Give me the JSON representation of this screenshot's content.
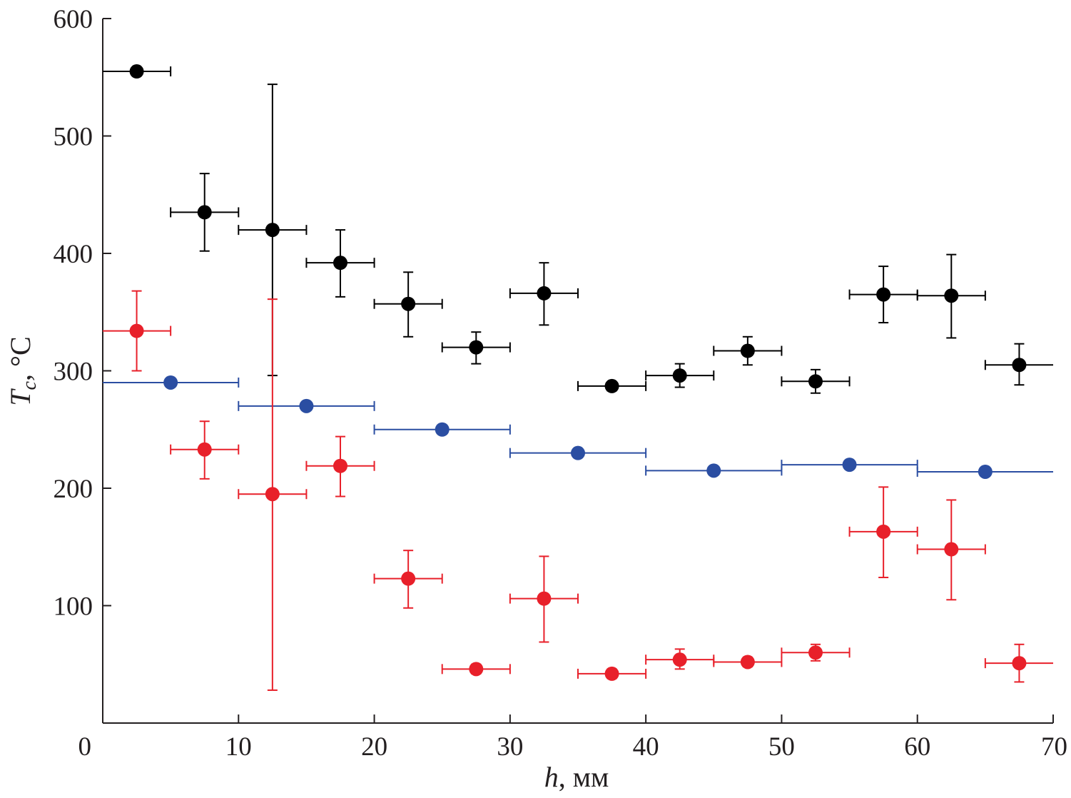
{
  "chart_data": {
    "type": "scatter",
    "title": "",
    "xlabel": {
      "symbol": "h",
      "unit": ", мм"
    },
    "ylabel": {
      "symbol": "T",
      "subscript": "c",
      "unit": ", °C"
    },
    "xlim": [
      0,
      70
    ],
    "ylim": [
      0,
      600
    ],
    "x_ticks": [
      "0",
      "10",
      "20",
      "30",
      "40",
      "50",
      "60",
      "70"
    ],
    "y_ticks": [
      "100",
      "200",
      "300",
      "400",
      "500",
      "600"
    ],
    "grid": false,
    "legend": "none",
    "series": [
      {
        "color": "#000000",
        "points": [
          {
            "x": 2.5,
            "y": 555,
            "xerr": [
              0,
              5
            ],
            "yerr": null
          },
          {
            "x": 7.5,
            "y": 435,
            "xerr": [
              5,
              10
            ],
            "yerr": [
              402,
              468
            ]
          },
          {
            "x": 12.5,
            "y": 420,
            "xerr": [
              10,
              15
            ],
            "yerr": [
              296,
              544
            ]
          },
          {
            "x": 17.5,
            "y": 392,
            "xerr": [
              15,
              20
            ],
            "yerr": [
              363,
              420
            ]
          },
          {
            "x": 22.5,
            "y": 357,
            "xerr": [
              20,
              25
            ],
            "yerr": [
              329,
              384
            ]
          },
          {
            "x": 27.5,
            "y": 320,
            "xerr": [
              25,
              30
            ],
            "yerr": [
              306,
              333
            ]
          },
          {
            "x": 32.5,
            "y": 366,
            "xerr": [
              30,
              35
            ],
            "yerr": [
              339,
              392
            ]
          },
          {
            "x": 37.5,
            "y": 287,
            "xerr": [
              35,
              40
            ],
            "yerr": [
              283,
              290
            ]
          },
          {
            "x": 42.5,
            "y": 296,
            "xerr": [
              40,
              45
            ],
            "yerr": [
              286,
              306
            ]
          },
          {
            "x": 47.5,
            "y": 317,
            "xerr": [
              45,
              50
            ],
            "yerr": [
              305,
              329
            ]
          },
          {
            "x": 52.5,
            "y": 291,
            "xerr": [
              50,
              55
            ],
            "yerr": [
              281,
              301
            ]
          },
          {
            "x": 57.5,
            "y": 365,
            "xerr": [
              55,
              60
            ],
            "yerr": [
              341,
              389
            ]
          },
          {
            "x": 62.5,
            "y": 364,
            "xerr": [
              60,
              65
            ],
            "yerr": [
              328,
              399
            ]
          },
          {
            "x": 67.5,
            "y": 305,
            "xerr": [
              65,
              70
            ],
            "yerr": [
              288,
              323
            ]
          }
        ]
      },
      {
        "color": "#2b4ea2",
        "points": [
          {
            "x": 5,
            "y": 290,
            "xerr": [
              0,
              10
            ],
            "yerr": null
          },
          {
            "x": 15,
            "y": 270,
            "xerr": [
              10,
              20
            ],
            "yerr": null
          },
          {
            "x": 25,
            "y": 250,
            "xerr": [
              20,
              30
            ],
            "yerr": null
          },
          {
            "x": 35,
            "y": 230,
            "xerr": [
              30,
              40
            ],
            "yerr": null
          },
          {
            "x": 45,
            "y": 215,
            "xerr": [
              40,
              50
            ],
            "yerr": null
          },
          {
            "x": 55,
            "y": 220,
            "xerr": [
              50,
              60
            ],
            "yerr": null
          },
          {
            "x": 65,
            "y": 214,
            "xerr": [
              60,
              70
            ],
            "yerr": null
          }
        ]
      },
      {
        "color": "#e8202a",
        "points": [
          {
            "x": 2.5,
            "y": 334,
            "xerr": [
              0,
              5
            ],
            "yerr": [
              300,
              368
            ]
          },
          {
            "x": 7.5,
            "y": 233,
            "xerr": [
              5,
              10
            ],
            "yerr": [
              208,
              257
            ]
          },
          {
            "x": 12.5,
            "y": 195,
            "xerr": [
              10,
              15
            ],
            "yerr": [
              28,
              361
            ]
          },
          {
            "x": 17.5,
            "y": 219,
            "xerr": [
              15,
              20
            ],
            "yerr": [
              193,
              244
            ]
          },
          {
            "x": 22.5,
            "y": 123,
            "xerr": [
              20,
              25
            ],
            "yerr": [
              98,
              147
            ]
          },
          {
            "x": 27.5,
            "y": 46,
            "xerr": [
              25,
              30
            ],
            "yerr": [
              42,
              50
            ]
          },
          {
            "x": 32.5,
            "y": 106,
            "xerr": [
              30,
              35
            ],
            "yerr": [
              69,
              142
            ]
          },
          {
            "x": 37.5,
            "y": 42,
            "xerr": [
              35,
              40
            ],
            "yerr": [
              38,
              46
            ]
          },
          {
            "x": 42.5,
            "y": 54,
            "xerr": [
              40,
              45
            ],
            "yerr": [
              46,
              63
            ]
          },
          {
            "x": 47.5,
            "y": 52,
            "xerr": [
              45,
              50
            ],
            "yerr": [
              48,
              56
            ]
          },
          {
            "x": 52.5,
            "y": 60,
            "xerr": [
              50,
              55
            ],
            "yerr": [
              53,
              67
            ]
          },
          {
            "x": 57.5,
            "y": 163,
            "xerr": [
              55,
              60
            ],
            "yerr": [
              124,
              201
            ]
          },
          {
            "x": 62.5,
            "y": 148,
            "xerr": [
              60,
              65
            ],
            "yerr": [
              105,
              190
            ]
          },
          {
            "x": 67.5,
            "y": 51,
            "xerr": [
              65,
              70
            ],
            "yerr": [
              35,
              67
            ]
          }
        ]
      }
    ]
  }
}
